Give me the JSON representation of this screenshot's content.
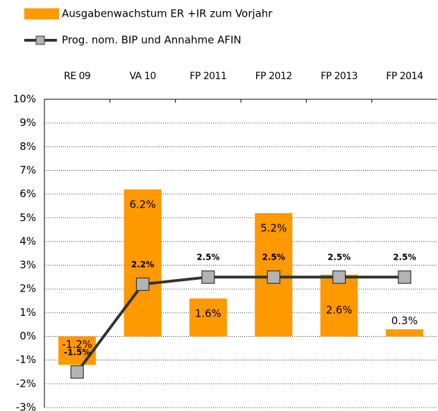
{
  "chart_data": {
    "type": "bar",
    "categories": [
      "RE 09",
      "VA 10",
      "FP 2011",
      "FP 2012",
      "FP 2013",
      "FP 2014"
    ],
    "series": [
      {
        "name": "Ausgabenwachstum ER +IR zum Vorjahr",
        "type": "bar",
        "color": "#ff9900",
        "values": [
          -1.2,
          6.2,
          1.6,
          5.2,
          2.6,
          0.3
        ],
        "value_labels": [
          "-1.2%",
          "6.2%",
          "1.6%",
          "5.2%",
          "2.6%",
          "0.3%"
        ]
      },
      {
        "name": "Prog. nom. BIP und Annahme AFIN",
        "type": "line",
        "color": "#333333",
        "marker_color": "#b3b3b3",
        "values": [
          -1.5,
          2.2,
          2.5,
          2.5,
          2.5,
          2.5
        ],
        "value_labels": [
          "-1.5%",
          "2.2%",
          "2.5%",
          "2.5%",
          "2.5%",
          "2.5%"
        ]
      }
    ],
    "ylim": [
      -3,
      10
    ],
    "yticks": [
      {
        "value": -3,
        "label": "-3%"
      },
      {
        "value": -2,
        "label": "-2%"
      },
      {
        "value": -1,
        "label": "-1%"
      },
      {
        "value": 0,
        "label": "0%"
      },
      {
        "value": 1,
        "label": "1%"
      },
      {
        "value": 2,
        "label": "2%"
      },
      {
        "value": 3,
        "label": "3%"
      },
      {
        "value": 4,
        "label": "4%"
      },
      {
        "value": 5,
        "label": "5%"
      },
      {
        "value": 6,
        "label": "6%"
      },
      {
        "value": 7,
        "label": "7%"
      },
      {
        "value": 8,
        "label": "8%"
      },
      {
        "value": 9,
        "label": "9%"
      },
      {
        "value": 10,
        "label": "10%"
      }
    ],
    "grid": true,
    "legend": "top-left"
  }
}
